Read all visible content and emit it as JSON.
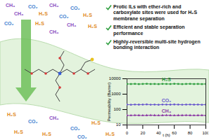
{
  "feed": [
    {
      "text": "CH₄",
      "color": "#8a4fbf"
    },
    {
      "text": "CO₂",
      "color": "#3f7fd0"
    },
    {
      "text": "CH₄",
      "color": "#8a4fbf"
    },
    {
      "text": "CO₂",
      "color": "#3f7fd0"
    },
    {
      "text": "CH₄",
      "color": "#8a4fbf"
    },
    {
      "text": "H₂S",
      "color": "#e08a1e"
    },
    {
      "text": "CO₂",
      "color": "#3f7fd0"
    },
    {
      "text": "H₂S",
      "color": "#e08a1e"
    },
    {
      "text": "CO₂",
      "color": "#3f7fd0"
    },
    {
      "text": "H₂S",
      "color": "#e08a1e"
    },
    {
      "text": "CH₄",
      "color": "#8a4fbf"
    },
    {
      "text": "H₂S",
      "color": "#e08a1e"
    },
    {
      "text": "CH₄",
      "color": "#8a4fbf"
    }
  ],
  "permeate": [
    {
      "text": "H₂S",
      "color": "#e08a1e"
    },
    {
      "text": "CO₂",
      "color": "#3f7fd0"
    },
    {
      "text": "CH₄",
      "color": "#8a4fbf"
    },
    {
      "text": "CO₂",
      "color": "#3f7fd0"
    },
    {
      "text": "H₂S",
      "color": "#e08a1e"
    },
    {
      "text": "H₂S",
      "color": "#e08a1e"
    },
    {
      "text": "H₂S",
      "color": "#e08a1e"
    },
    {
      "text": "CO₂",
      "color": "#3f7fd0"
    },
    {
      "text": "H₂S",
      "color": "#e08a1e"
    }
  ],
  "bullets": [
    "Protic ILs with ether-rich and carboxylate sites were used for H₂S membrane separation",
    "Efficient and stable separation performance",
    "Highly-reversible multi-site hydrogen bonding interaction"
  ],
  "chart_data": {
    "type": "line",
    "log": "y",
    "x_label": "t (h)",
    "y_label": "Permeability (Barrer)",
    "x": [
      0,
      5,
      10,
      15,
      20,
      25,
      30,
      35,
      40,
      45,
      50,
      55,
      60,
      65,
      70,
      75,
      80,
      85,
      90,
      95,
      100
    ],
    "xlim": [
      0,
      100
    ],
    "xticks": [
      0,
      20,
      40,
      60,
      80,
      100
    ],
    "ylim": [
      10,
      10000
    ],
    "yticks": [
      10,
      100,
      1000,
      10000
    ],
    "series": [
      {
        "name": "H₂S",
        "color": "#2e9e3e",
        "marker": "square",
        "values": [
          4600,
          4550,
          4650,
          4500,
          4600,
          4700,
          4550,
          4600,
          4500,
          4650,
          4600,
          4550,
          4700,
          4600,
          4500,
          4600,
          4650,
          4550,
          4600,
          4500,
          4600
        ]
      },
      {
        "name": "CO₂",
        "color": "#6a5acd",
        "marker": "circle",
        "values": [
          210,
          205,
          212,
          208,
          210,
          215,
          207,
          210,
          205,
          212,
          210,
          208,
          214,
          210,
          206,
          210,
          212,
          208,
          210,
          205,
          210
        ]
      },
      {
        "name": "CH₄",
        "color": "#8e3fa6",
        "marker": "triangle",
        "values": [
          42,
          41,
          43,
          42,
          41,
          42,
          43,
          42,
          41,
          42,
          43,
          42,
          41,
          42,
          42,
          43,
          42,
          41,
          42,
          42,
          42
        ]
      }
    ]
  }
}
